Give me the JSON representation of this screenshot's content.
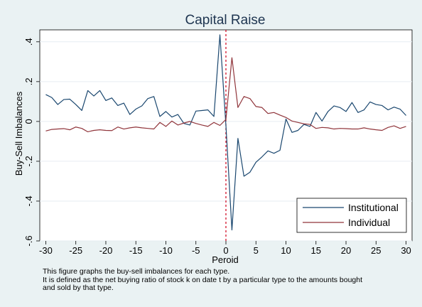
{
  "chart_data": {
    "type": "line",
    "title": "Capital Raise",
    "xlabel": "Peroid",
    "ylabel": "Buy-Sell Imbalances",
    "xlim": [
      -31,
      31
    ],
    "ylim": [
      -0.6,
      0.46
    ],
    "xticks": [
      -30,
      -25,
      -20,
      -15,
      -10,
      -5,
      0,
      5,
      10,
      15,
      20,
      25,
      30
    ],
    "xtick_labels": [
      "-30",
      "-25",
      "-20",
      "-15",
      "-10",
      "-5",
      "0",
      "5",
      "10",
      "15",
      "20",
      "25",
      "30"
    ],
    "yticks": [
      -0.6,
      -0.4,
      -0.2,
      0,
      0.2,
      0.4
    ],
    "ytick_labels": [
      "-.6",
      "-.4",
      "-.2",
      "0",
      ".2",
      ".4"
    ],
    "grid": "horizontal",
    "legend_position": "bottom-right",
    "reference_line": {
      "x": 0,
      "style": "dashed",
      "color": "#d0021b"
    },
    "x": [
      -30,
      -29,
      -28,
      -27,
      -26,
      -25,
      -24,
      -23,
      -22,
      -21,
      -20,
      -19,
      -18,
      -17,
      -16,
      -15,
      -14,
      -13,
      -12,
      -11,
      -10,
      -9,
      -8,
      -7,
      -6,
      -5,
      -4,
      -3,
      -2,
      -1,
      0,
      1,
      2,
      3,
      4,
      5,
      6,
      7,
      8,
      9,
      10,
      11,
      12,
      13,
      14,
      15,
      16,
      17,
      18,
      19,
      20,
      21,
      22,
      23,
      24,
      25,
      26,
      27,
      28,
      29,
      30
    ],
    "series": [
      {
        "name": "Institutional",
        "color": "#1a476f",
        "values": [
          0.135,
          0.12,
          0.085,
          0.11,
          0.112,
          0.085,
          0.055,
          0.155,
          0.128,
          0.155,
          0.105,
          0.118,
          0.08,
          0.092,
          0.035,
          0.062,
          0.078,
          0.115,
          0.125,
          0.025,
          0.05,
          0.022,
          0.035,
          -0.01,
          -0.018,
          0.052,
          0.055,
          0.058,
          0.025,
          0.435,
          -0.02,
          -0.545,
          -0.085,
          -0.275,
          -0.255,
          -0.205,
          -0.178,
          -0.148,
          -0.16,
          -0.145,
          0.012,
          -0.055,
          -0.045,
          -0.015,
          -0.025,
          0.045,
          0.002,
          0.05,
          0.078,
          0.07,
          0.05,
          0.095,
          0.045,
          0.058,
          0.098,
          0.085,
          0.08,
          0.058,
          0.072,
          0.062,
          0.03
        ]
      },
      {
        "name": "Individual",
        "color": "#90353b",
        "values": [
          -0.048,
          -0.04,
          -0.038,
          -0.036,
          -0.042,
          -0.028,
          -0.035,
          -0.052,
          -0.045,
          -0.042,
          -0.045,
          -0.046,
          -0.028,
          -0.038,
          -0.032,
          -0.028,
          -0.032,
          -0.035,
          -0.038,
          -0.005,
          -0.025,
          0.002,
          -0.018,
          -0.008,
          0.0,
          -0.01,
          -0.018,
          -0.025,
          -0.005,
          -0.02,
          0.01,
          0.32,
          0.07,
          0.125,
          0.115,
          0.075,
          0.07,
          0.04,
          0.045,
          0.032,
          0.02,
          0.002,
          -0.005,
          -0.012,
          -0.015,
          -0.035,
          -0.03,
          -0.032,
          -0.038,
          -0.035,
          -0.036,
          -0.038,
          -0.038,
          -0.032,
          -0.038,
          -0.042,
          -0.045,
          -0.03,
          -0.022,
          -0.035,
          -0.025
        ]
      }
    ]
  },
  "caption": {
    "line1": "This figure graphs the buy-sell imbalances for each type.",
    "line2": "It is defined as the net buying ratio of stock k on date t by a particular type to the amounts bought",
    "line3": "and sold by that type."
  },
  "colors": {
    "background": "#eaf2f3",
    "plot_background": "#ffffff",
    "gridline": "#e6edf2",
    "title": "#1e3550"
  }
}
